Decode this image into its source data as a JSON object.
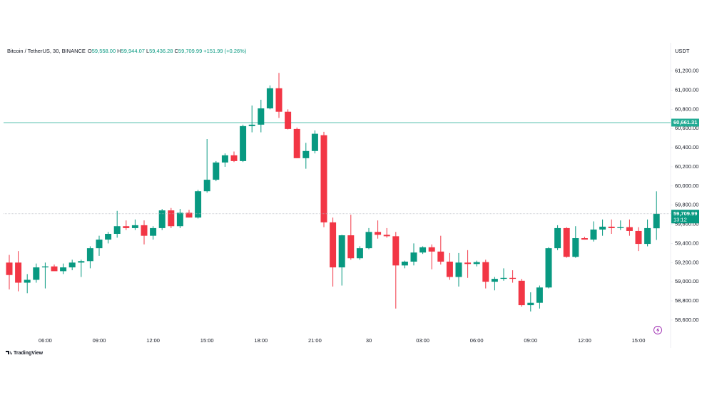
{
  "chart_data": {
    "type": "candlestick",
    "header": {
      "symbol": "Bitcoin / TetherUS, 30, BINANCE",
      "fields": [
        {
          "key": "O",
          "value": "59,558.00"
        },
        {
          "key": "H",
          "value": "59,944.07"
        },
        {
          "key": "L",
          "value": "59,436.28"
        },
        {
          "key": "C",
          "value": "59,709.99"
        }
      ],
      "change": "+151.99 (+0.26%)"
    },
    "currency": "USDT",
    "logo": "TradingView",
    "categories": [
      null,
      null,
      null,
      null,
      "06:00",
      null,
      null,
      null,
      null,
      null,
      "09:00",
      null,
      null,
      null,
      null,
      null,
      "12:00",
      null,
      null,
      null,
      null,
      null,
      "15:00",
      null,
      null,
      null,
      null,
      null,
      "18:00",
      null,
      null,
      null,
      null,
      null,
      "21:00",
      null,
      null,
      null,
      null,
      null,
      "30",
      null,
      null,
      null,
      null,
      null,
      "03:00",
      null,
      null,
      null,
      null,
      null,
      "06:00",
      null,
      null,
      null,
      null,
      null,
      "09:00",
      null,
      null,
      null,
      null,
      null,
      "12:00",
      null,
      null,
      null,
      null,
      null,
      "15:00",
      null,
      null
    ],
    "open": [
      59200,
      59200,
      58990,
      59020,
      59150,
      59160,
      59110,
      59150,
      59200,
      59215,
      59350,
      59440,
      59500,
      59580,
      59560,
      59590,
      59480,
      59560,
      59745,
      59580,
      59720,
      59670,
      59945,
      60065,
      60245,
      60320,
      60260,
      60625,
      60640,
      60810,
      61020,
      60775,
      60595,
      60290,
      60365,
      60530,
      59620,
      59150,
      59485,
      59245,
      59350,
      59520,
      59490,
      59475,
      59170,
      59210,
      59305,
      59360,
      59315,
      59210,
      59050,
      59200,
      59185,
      59205,
      59000,
      59030,
      59040,
      59010,
      58755,
      58780,
      58940,
      59350,
      59560,
      59260,
      59455,
      59440,
      59545,
      59575,
      59560,
      59570,
      59530,
      59395,
      59558
    ],
    "high": [
      59280,
      59320,
      59080,
      59190,
      59200,
      59180,
      59190,
      59230,
      59230,
      59370,
      59480,
      59520,
      59740,
      59640,
      59650,
      59640,
      59580,
      59760,
      59770,
      59760,
      59750,
      59960,
      60490,
      60260,
      60340,
      60360,
      60640,
      60840,
      60900,
      61050,
      61180,
      60800,
      60610,
      60450,
      60580,
      60565,
      59670,
      59490,
      59700,
      59370,
      59560,
      59640,
      59560,
      59520,
      59220,
      59400,
      59370,
      59390,
      59480,
      59300,
      59300,
      59330,
      59220,
      59230,
      59050,
      59140,
      59120,
      59030,
      58890,
      58960,
      59360,
      59590,
      59570,
      59580,
      59470,
      59630,
      59650,
      59650,
      59640,
      59650,
      59570,
      59650,
      59944.07
    ],
    "low": [
      58920,
      58900,
      58880,
      58990,
      58930,
      59120,
      59080,
      59120,
      59050,
      59140,
      59270,
      59400,
      59460,
      59540,
      59540,
      59390,
      59440,
      59540,
      59560,
      59560,
      59670,
      59660,
      59930,
      60050,
      60200,
      60250,
      60250,
      60560,
      60560,
      60800,
      60710,
      60590,
      60290,
      60180,
      60340,
      59570,
      58950,
      58960,
      59230,
      59230,
      59340,
      59450,
      59460,
      58720,
      59140,
      59170,
      59290,
      59130,
      59180,
      59020,
      58950,
      59040,
      59160,
      58930,
      58910,
      59010,
      58990,
      58740,
      58690,
      58720,
      58930,
      59330,
      59250,
      59250,
      59440,
      59420,
      59480,
      59500,
      59540,
      59480,
      59320,
      59370,
      59436.28
    ],
    "close": [
      59070,
      58990,
      59020,
      59150,
      59160,
      59110,
      59150,
      59200,
      59215,
      59350,
      59440,
      59500,
      59580,
      59560,
      59590,
      59480,
      59560,
      59745,
      59580,
      59720,
      59670,
      59945,
      60065,
      60245,
      60320,
      60260,
      60625,
      60640,
      60810,
      61020,
      60775,
      60595,
      60290,
      60365,
      60545,
      59620,
      59150,
      59485,
      59245,
      59350,
      59520,
      59490,
      59475,
      59170,
      59210,
      59305,
      59360,
      59315,
      59210,
      59050,
      59200,
      59185,
      59205,
      59000,
      59030,
      59040,
      59030,
      58755,
      58780,
      58940,
      59350,
      59560,
      59260,
      59455,
      59440,
      59545,
      59575,
      59560,
      59570,
      59530,
      59395,
      59560,
      59709.99
    ],
    "up_color": "#089981",
    "down_color": "#f23645",
    "ylim": [
      58480,
      61480
    ],
    "yticks": [
      {
        "value": 58600,
        "label": "58,600.00"
      },
      {
        "value": 58800,
        "label": "58,800.00"
      },
      {
        "value": 59000,
        "label": "59,000.00"
      },
      {
        "value": 59200,
        "label": "59,200.00"
      },
      {
        "value": 59400,
        "label": "59,400.00"
      },
      {
        "value": 59600,
        "label": "59,600.00"
      },
      {
        "value": 59800,
        "label": "59,800.00"
      },
      {
        "value": 60000,
        "label": "60,000.00"
      },
      {
        "value": 60200,
        "label": "60,200.00"
      },
      {
        "value": 60400,
        "label": "60,400.00"
      },
      {
        "value": 60600,
        "label": "60,600.00"
      },
      {
        "value": 60800,
        "label": "60,800.00"
      },
      {
        "value": 61000,
        "label": "61,000.00"
      },
      {
        "value": 61200,
        "label": "61,200.00"
      }
    ],
    "hlines": [
      {
        "value": 60661.31,
        "label": "60,661.31",
        "color": "#22ab94"
      }
    ],
    "last_price_label": "59,709.99",
    "countdown": "13:12"
  }
}
